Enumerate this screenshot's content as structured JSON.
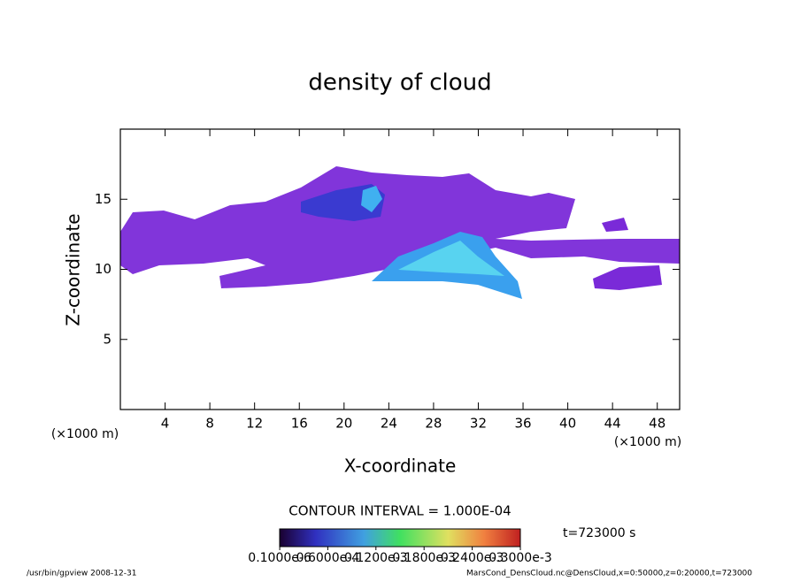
{
  "chart_data": {
    "type": "contour",
    "title": "density of cloud",
    "xlabel": "X-coordinate",
    "ylabel": "Z-coordinate",
    "axis_unit": "(×1000 m)",
    "xlim": [
      0,
      50
    ],
    "xticks": [
      4,
      8,
      12,
      16,
      20,
      24,
      28,
      32,
      36,
      40,
      44,
      48
    ],
    "ylim": [
      0,
      20
    ],
    "yticks": [
      5,
      10,
      15
    ],
    "contour_interval": "CONTOUR INTERVAL = 1.000E-04",
    "time_label": "t=723000 s",
    "colorbar_lim": [
      0,
      0.0003
    ],
    "colorbar_ticks": [
      {
        "value": 1e-07,
        "label": "0.1000e-6"
      },
      {
        "value": 6e-05,
        "label": "0.6000e-4"
      },
      {
        "value": 0.00012,
        "label": "0.1200e-3"
      },
      {
        "value": 0.00018,
        "label": "0.1800e-3"
      },
      {
        "value": 0.00024,
        "label": "0.2400e-3"
      },
      {
        "value": 0.0003,
        "label": "0.3000e-3"
      }
    ],
    "footer_left": "/usr/bin/gpview  2008-12-31",
    "footer_right": "MarsCond_DensCloud.nc@DensCloud,x=0:50000,z=0:20000,t=723000"
  }
}
